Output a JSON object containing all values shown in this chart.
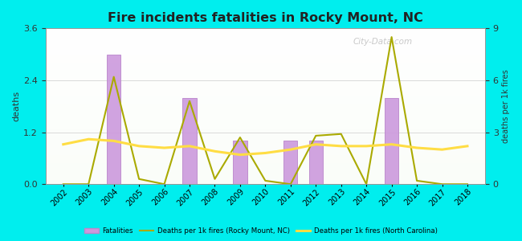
{
  "title": "Fire incidents fatalities in Rocky Mount, NC",
  "background_color": "#00EEEE",
  "plot_bg": "#e8f5e0",
  "years": [
    2002,
    2003,
    2004,
    2005,
    2006,
    2007,
    2008,
    2009,
    2010,
    2011,
    2012,
    2013,
    2014,
    2015,
    2016,
    2017,
    2018
  ],
  "fatalities": [
    0,
    0,
    3,
    0,
    0,
    2,
    0,
    1,
    0,
    1,
    1,
    0,
    0,
    2,
    0,
    0,
    0
  ],
  "rocky_line": [
    0.0,
    0.0,
    6.2,
    0.3,
    0.0,
    4.8,
    0.3,
    2.7,
    0.2,
    0.0,
    2.8,
    2.9,
    0.0,
    8.5,
    0.2,
    0.0,
    0.0
  ],
  "nc_line": [
    2.3,
    2.6,
    2.5,
    2.2,
    2.1,
    2.2,
    1.9,
    1.7,
    1.8,
    2.0,
    2.3,
    2.2,
    2.2,
    2.3,
    2.1,
    2.0,
    2.2
  ],
  "ylim_left": [
    0,
    3.6
  ],
  "ylim_right": [
    0,
    9
  ],
  "yticks_left": [
    0,
    1.2,
    2.4,
    3.6
  ],
  "yticks_right": [
    0,
    3,
    6,
    9
  ],
  "bar_color": "#cc99dd",
  "bar_edge_color": "#bb88cc",
  "rocky_line_color": "#aaaa00",
  "nc_line_color": "#ffdd44",
  "ylabel_left": "deaths",
  "ylabel_right": "deaths per 1k fires",
  "watermark": "City-Data.com",
  "legend_labels": [
    "Fatalities",
    "Deaths per 1k fires (Rocky Mount, NC)",
    "Deaths per 1k fires (North Carolina)"
  ]
}
